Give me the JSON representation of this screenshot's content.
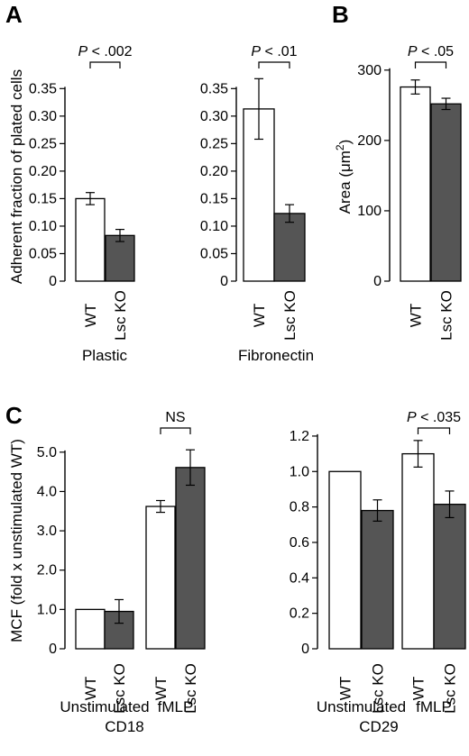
{
  "panel_labels": [
    "A",
    "B",
    "C"
  ],
  "colors": {
    "wt": "#ffffff",
    "ko": "#555555",
    "stroke": "#000000"
  },
  "chart_data": [
    {
      "id": "A-plastic",
      "panel": "A",
      "type": "bar",
      "categories": [
        "WT",
        "Lsc KO"
      ],
      "values": [
        0.15,
        0.083
      ],
      "errors": [
        0.011,
        0.011
      ],
      "ylabel": "Adherent fraction of plated cells",
      "xlabel": "Plastic",
      "ylim": [
        0,
        0.38
      ],
      "yticks": [
        0,
        0.05,
        0.1,
        0.15,
        0.2,
        0.25,
        0.3,
        0.35
      ],
      "ytick_labels": [
        "0",
        "0.05",
        "0.10",
        "0.15",
        "0.20",
        "0.25",
        "0.30",
        "0.35"
      ],
      "significance": [
        {
          "pair": [
            0,
            1
          ],
          "label": "P < .002"
        }
      ]
    },
    {
      "id": "A-fibronectin",
      "panel": "A",
      "type": "bar",
      "categories": [
        "WT",
        "Lsc KO"
      ],
      "values": [
        0.313,
        0.123
      ],
      "errors": [
        0.055,
        0.016
      ],
      "ylabel": "",
      "xlabel": "Fibronectin",
      "ylim": [
        0,
        0.38
      ],
      "yticks": [
        0,
        0.05,
        0.1,
        0.15,
        0.2,
        0.25,
        0.3,
        0.35
      ],
      "ytick_labels": [
        "0",
        "0.05",
        "0.10",
        "0.15",
        "0.20",
        "0.25",
        "0.30",
        "0.35"
      ],
      "significance": [
        {
          "pair": [
            0,
            1
          ],
          "label": "P < .01"
        }
      ]
    },
    {
      "id": "B-area",
      "panel": "B",
      "type": "bar",
      "categories": [
        "WT",
        "Lsc KO"
      ],
      "values": [
        276,
        252
      ],
      "errors": [
        10,
        8
      ],
      "ylabel_main": "Area (μm",
      "ylabel_sup": "2",
      "ylabel_end": ")",
      "xlabel": "",
      "ylim": [
        0,
        310
      ],
      "yticks": [
        0,
        100,
        200,
        300
      ],
      "ytick_labels": [
        "0",
        "100",
        "200",
        "300"
      ],
      "significance": [
        {
          "pair": [
            0,
            1
          ],
          "label": "P < .05"
        }
      ]
    },
    {
      "id": "C-CD18",
      "panel": "C",
      "type": "bar",
      "categories": [
        "WT",
        "Lsc KO",
        "WT",
        "Lsc KO"
      ],
      "groups": [
        {
          "label": "Unstimulated",
          "indices": [
            0,
            1
          ]
        },
        {
          "label": "fMLP",
          "indices": [
            2,
            3
          ]
        }
      ],
      "values": [
        1.0,
        0.95,
        3.62,
        4.61
      ],
      "errors": [
        0,
        0.3,
        0.15,
        0.45
      ],
      "ylabel": "MCF (fold x unstimulated WT)",
      "xlabel": "CD18",
      "ylim": [
        0,
        5.5
      ],
      "yticks": [
        0,
        1,
        2,
        3,
        4,
        5
      ],
      "ytick_labels": [
        "0",
        "1.0",
        "2.0",
        "3.0",
        "4.0",
        "5.0"
      ],
      "significance": [
        {
          "pair": [
            2,
            3
          ],
          "label": "NS"
        }
      ]
    },
    {
      "id": "C-CD29",
      "panel": "C",
      "type": "bar",
      "categories": [
        "WT",
        "Lsc KO",
        "WT",
        "Lsc KO"
      ],
      "groups": [
        {
          "label": "Unstimulated",
          "indices": [
            0,
            1
          ]
        },
        {
          "label": "fMLP",
          "indices": [
            2,
            3
          ]
        }
      ],
      "values": [
        1.0,
        0.78,
        1.1,
        0.815
      ],
      "errors": [
        0,
        0.06,
        0.075,
        0.075
      ],
      "ylabel": "",
      "xlabel": "CD29",
      "ylim": [
        0,
        1.22
      ],
      "yticks": [
        0,
        0.2,
        0.4,
        0.6,
        0.8,
        1.0,
        1.2
      ],
      "ytick_labels": [
        "0",
        "0.2",
        "0.4",
        "0.6",
        "0.8",
        "1.0",
        "1.2"
      ],
      "significance": [
        {
          "pair": [
            2,
            3
          ],
          "label": "P < .035"
        }
      ]
    }
  ]
}
